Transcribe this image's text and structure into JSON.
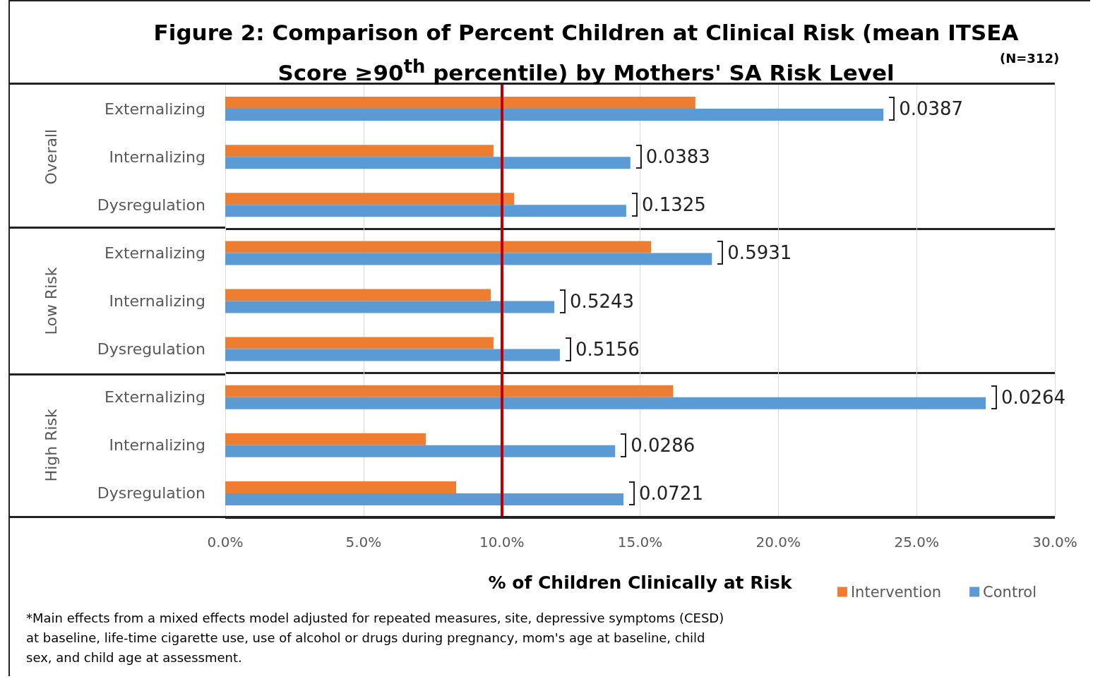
{
  "chart_data": {
    "type": "bar",
    "orientation": "horizontal",
    "title": "Figure 2: Comparison of Percent Children at Clinical Risk (mean ITSEA Score ≥90$^{th}$ percentile) by Mothers' SA Risk Level",
    "subtitle": "(N=312)",
    "xlabel": "% of Children Clinically at Risk",
    "categories": [
      "Externalizing",
      "Internalizing",
      "Dysregulation",
      "Externalizing",
      "Internalizing",
      "Dysregulation",
      "Externalizing",
      "Internalizing",
      "Dysregulation"
    ],
    "series": [
      {
        "name": "Intervention",
        "color": "#ed7d31",
        "values": [
          17.0,
          9.7,
          10.45,
          15.4,
          9.6,
          9.7,
          16.2,
          7.25,
          8.35
        ]
      },
      {
        "name": "Control",
        "color": "#5b9bd5",
        "values": [
          23.8,
          14.65,
          14.5,
          17.6,
          11.9,
          12.1,
          27.5,
          14.1,
          14.4
        ]
      }
    ],
    "xlim": [
      0,
      30
    ],
    "xticks": [
      {
        "value": 0,
        "label": "0.0%"
      },
      {
        "value": 5,
        "label": "5.0%"
      },
      {
        "value": 10,
        "label": "10.0%"
      },
      {
        "value": 15,
        "label": "15.0%"
      },
      {
        "value": 20,
        "label": "20.0%"
      },
      {
        "value": 25,
        "label": "25.0%"
      },
      {
        "value": 30,
        "label": "30.0%"
      }
    ],
    "ref_lines": [
      {
        "axis": "x",
        "value": 10,
        "color": "#c00000"
      }
    ],
    "grid": "x",
    "legend": "bottom right",
    "annotations": [
      "Overall",
      "Low Risk",
      "High Risk",
      "0.0387",
      "0.0383",
      "0.1325",
      "0.5931",
      "0.5243",
      "0.5156",
      "0.0264",
      "0.0286",
      "0.0721",
      "*Main effects from a mixed effects model adjusted for repeated measures, site, depressive symptoms (CESD) at baseline, life-time cigarette use, use of alcohol or drugs during pregnancy, mom's age at baseline, child sex, and child age at assessment."
    ]
  }
}
